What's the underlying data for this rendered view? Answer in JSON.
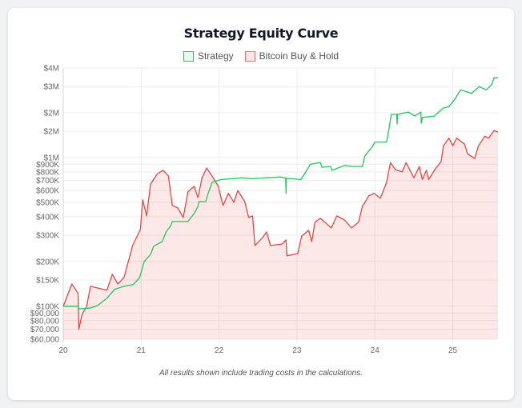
{
  "chart_data": {
    "type": "line",
    "title": "Strategy Equity Curve",
    "footnote": "All results shown include trading costs in the calculations.",
    "y_scale": "log",
    "ylim": [
      60000,
      4000000
    ],
    "xlim": [
      20,
      25.58
    ],
    "grid": true,
    "legend_placement": "top",
    "x_ticks": [
      {
        "v": 20,
        "label": "20"
      },
      {
        "v": 21,
        "label": "21"
      },
      {
        "v": 22,
        "label": "22"
      },
      {
        "v": 23,
        "label": "23"
      },
      {
        "v": 24,
        "label": "24"
      },
      {
        "v": 25,
        "label": "25"
      }
    ],
    "y_ticks": [
      {
        "v": 60000,
        "label": "$60,000"
      },
      {
        "v": 70000,
        "label": "$70,000"
      },
      {
        "v": 80000,
        "label": "$80,000"
      },
      {
        "v": 90000,
        "label": "$90,000"
      },
      {
        "v": 100000,
        "label": "$100K"
      },
      {
        "v": 150000,
        "label": "$150K"
      },
      {
        "v": 200000,
        "label": "$200K"
      },
      {
        "v": 300000,
        "label": "$300K"
      },
      {
        "v": 400000,
        "label": "$400K"
      },
      {
        "v": 500000,
        "label": "$500K"
      },
      {
        "v": 600000,
        "label": "$600K"
      },
      {
        "v": 700000,
        "label": "$700K"
      },
      {
        "v": 800000,
        "label": "$800K"
      },
      {
        "v": 900000,
        "label": "$900K"
      },
      {
        "v": 1000000,
        "label": "$1M"
      },
      {
        "v": 1500000,
        "label": "$2M"
      },
      {
        "v": 2000000,
        "label": "$2M"
      },
      {
        "v": 3000000,
        "label": "$3M"
      },
      {
        "v": 4000000,
        "label": "$4M"
      }
    ],
    "series": [
      {
        "name": "Strategy",
        "color": "#22c55e",
        "fill": false,
        "points": [
          [
            20,
            100000
          ],
          [
            20.19,
            100000
          ],
          [
            20.2,
            96000
          ],
          [
            20.34,
            97000
          ],
          [
            20.44,
            101000
          ],
          [
            20.56,
            113000
          ],
          [
            20.66,
            130000
          ],
          [
            20.78,
            136000
          ],
          [
            20.9,
            140000
          ],
          [
            20.98,
            156000
          ],
          [
            21.04,
            200000
          ],
          [
            21.12,
            223000
          ],
          [
            21.16,
            253000
          ],
          [
            21.27,
            272000
          ],
          [
            21.32,
            316000
          ],
          [
            21.38,
            348000
          ],
          [
            21.4,
            371000
          ],
          [
            21.6,
            371000
          ],
          [
            21.68,
            420000
          ],
          [
            21.73,
            470000
          ],
          [
            21.74,
            505000
          ],
          [
            21.83,
            505000
          ],
          [
            21.86,
            574000
          ],
          [
            21.91,
            680000
          ],
          [
            22.02,
            710000
          ],
          [
            22.29,
            730000
          ],
          [
            22.43,
            720000
          ],
          [
            22.6,
            730000
          ],
          [
            22.79,
            740000
          ],
          [
            22.855,
            725000
          ],
          [
            22.86,
            574000
          ],
          [
            22.865,
            725000
          ],
          [
            22.94,
            720000
          ],
          [
            23.05,
            710000
          ],
          [
            23.1,
            780000
          ],
          [
            23.17,
            900000
          ],
          [
            23.3,
            925000
          ],
          [
            23.32,
            860000
          ],
          [
            23.43,
            870000
          ],
          [
            23.45,
            820000
          ],
          [
            23.61,
            885000
          ],
          [
            23.71,
            870000
          ],
          [
            23.84,
            870000
          ],
          [
            23.87,
            1020000
          ],
          [
            23.97,
            1190000
          ],
          [
            24.0,
            1270000
          ],
          [
            24.15,
            1270000
          ],
          [
            24.18,
            1550000
          ],
          [
            24.21,
            1950000
          ],
          [
            24.28,
            1950000
          ],
          [
            24.285,
            1680000
          ],
          [
            24.29,
            1950000
          ],
          [
            24.43,
            2020000
          ],
          [
            24.51,
            1900000
          ],
          [
            24.59,
            2020000
          ],
          [
            24.595,
            1700000
          ],
          [
            24.61,
            1860000
          ],
          [
            24.76,
            1900000
          ],
          [
            24.88,
            2150000
          ],
          [
            24.95,
            2200000
          ],
          [
            25.02,
            2440000
          ],
          [
            25.1,
            2850000
          ],
          [
            25.24,
            2700000
          ],
          [
            25.34,
            3000000
          ],
          [
            25.43,
            2850000
          ],
          [
            25.5,
            3100000
          ],
          [
            25.53,
            3440000
          ],
          [
            25.58,
            3440000
          ]
        ]
      },
      {
        "name": "Bitcoin Buy & Hold",
        "color": "#ef4444",
        "fill": true,
        "points": [
          [
            20,
            100000
          ],
          [
            20.11,
            141000
          ],
          [
            20.19,
            122000
          ],
          [
            20.2,
            70000
          ],
          [
            20.24,
            88000
          ],
          [
            20.3,
            100000
          ],
          [
            20.35,
            136000
          ],
          [
            20.56,
            128000
          ],
          [
            20.63,
            164000
          ],
          [
            20.7,
            141000
          ],
          [
            20.78,
            156000
          ],
          [
            20.89,
            256000
          ],
          [
            20.99,
            328000
          ],
          [
            21.02,
            519000
          ],
          [
            21.07,
            405000
          ],
          [
            21.12,
            663000
          ],
          [
            21.21,
            780000
          ],
          [
            21.28,
            820000
          ],
          [
            21.35,
            750000
          ],
          [
            21.4,
            476000
          ],
          [
            21.47,
            458000
          ],
          [
            21.54,
            395000
          ],
          [
            21.6,
            588000
          ],
          [
            21.68,
            640000
          ],
          [
            21.73,
            537000
          ],
          [
            21.78,
            726000
          ],
          [
            21.84,
            850000
          ],
          [
            21.91,
            750000
          ],
          [
            21.99,
            640000
          ],
          [
            22.05,
            476000
          ],
          [
            22.12,
            574000
          ],
          [
            22.19,
            500000
          ],
          [
            22.24,
            600000
          ],
          [
            22.33,
            505000
          ],
          [
            22.38,
            395000
          ],
          [
            22.43,
            405000
          ],
          [
            22.46,
            256000
          ],
          [
            22.56,
            290000
          ],
          [
            22.61,
            316000
          ],
          [
            22.66,
            256000
          ],
          [
            22.81,
            262000
          ],
          [
            22.86,
            279000
          ],
          [
            22.87,
            218000
          ],
          [
            23.01,
            226000
          ],
          [
            23.06,
            297000
          ],
          [
            23.15,
            324000
          ],
          [
            23.19,
            272000
          ],
          [
            23.23,
            367000
          ],
          [
            23.3,
            390000
          ],
          [
            23.44,
            336000
          ],
          [
            23.51,
            405000
          ],
          [
            23.61,
            380000
          ],
          [
            23.7,
            336000
          ],
          [
            23.79,
            367000
          ],
          [
            23.84,
            470000
          ],
          [
            23.92,
            552000
          ],
          [
            23.99,
            574000
          ],
          [
            24.07,
            532000
          ],
          [
            24.15,
            680000
          ],
          [
            24.2,
            925000
          ],
          [
            24.26,
            830000
          ],
          [
            24.35,
            800000
          ],
          [
            24.4,
            925000
          ],
          [
            24.5,
            730000
          ],
          [
            24.57,
            870000
          ],
          [
            24.61,
            710000
          ],
          [
            24.66,
            820000
          ],
          [
            24.69,
            710000
          ],
          [
            24.77,
            830000
          ],
          [
            24.85,
            940000
          ],
          [
            24.88,
            1200000
          ],
          [
            24.95,
            1350000
          ],
          [
            25.0,
            1200000
          ],
          [
            25.05,
            1350000
          ],
          [
            25.15,
            1230000
          ],
          [
            25.19,
            1060000
          ],
          [
            25.28,
            985000
          ],
          [
            25.33,
            1200000
          ],
          [
            25.41,
            1390000
          ],
          [
            25.46,
            1350000
          ],
          [
            25.53,
            1520000
          ],
          [
            25.58,
            1480000
          ]
        ]
      }
    ]
  }
}
